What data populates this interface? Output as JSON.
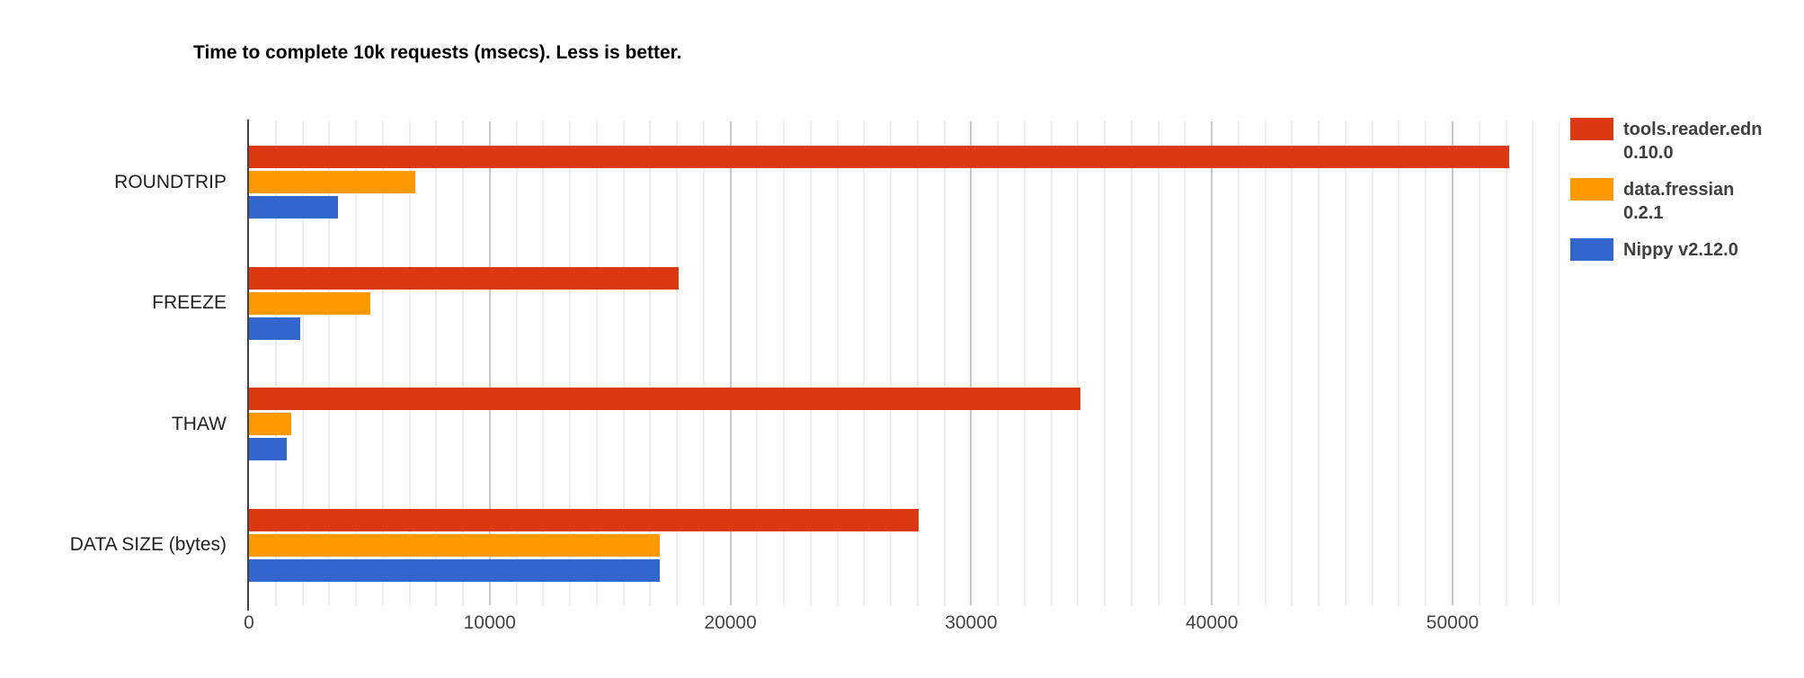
{
  "title": "Time to complete 10k requests (msecs). Less is better.",
  "colors": {
    "series_red": "#DC3912",
    "series_orange": "#FF9900",
    "series_blue": "#3366CC",
    "gridline_minor": "#EDEDED",
    "gridline_major": "#C9C9C9",
    "axis_baseline": "#424242",
    "background": "#FFFFFF"
  },
  "legend": {
    "items": [
      {
        "line1": "tools.reader.edn",
        "line2": "0.10.0"
      },
      {
        "line1": "data.fressian",
        "line2": "0.2.1"
      },
      {
        "line1": "Nippy v2.12.0",
        "line2": ""
      }
    ]
  },
  "chart_data": {
    "type": "bar",
    "orientation": "horizontal",
    "title": "Time to complete 10k requests (msecs). Less is better.",
    "categories": [
      "ROUNDTRIP",
      "FREEZE",
      "THAW",
      "DATA SIZE (bytes)"
    ],
    "series": [
      {
        "name": "tools.reader.edn 0.10.0",
        "color": "#DC3912",
        "values": [
          52340,
          17840,
          34540,
          27820
        ]
      },
      {
        "name": "data.fressian 0.2.1",
        "color": "#FF9900",
        "values": [
          6920,
          5040,
          1770,
          17070
        ]
      },
      {
        "name": "Nippy v2.12.0",
        "color": "#3366CC",
        "values": [
          3700,
          2130,
          1550,
          17070
        ]
      }
    ],
    "x_axis": {
      "min": 0,
      "max": 54444,
      "ticks": [
        0,
        10000,
        20000,
        30000,
        40000,
        50000
      ],
      "tick_labels": [
        "0",
        "10000",
        "20000",
        "30000",
        "40000",
        "50000"
      ],
      "minor_gridlines_per_major": 8
    },
    "ylabel": "",
    "xlabel": "",
    "grid": true,
    "legend_position": "right"
  }
}
